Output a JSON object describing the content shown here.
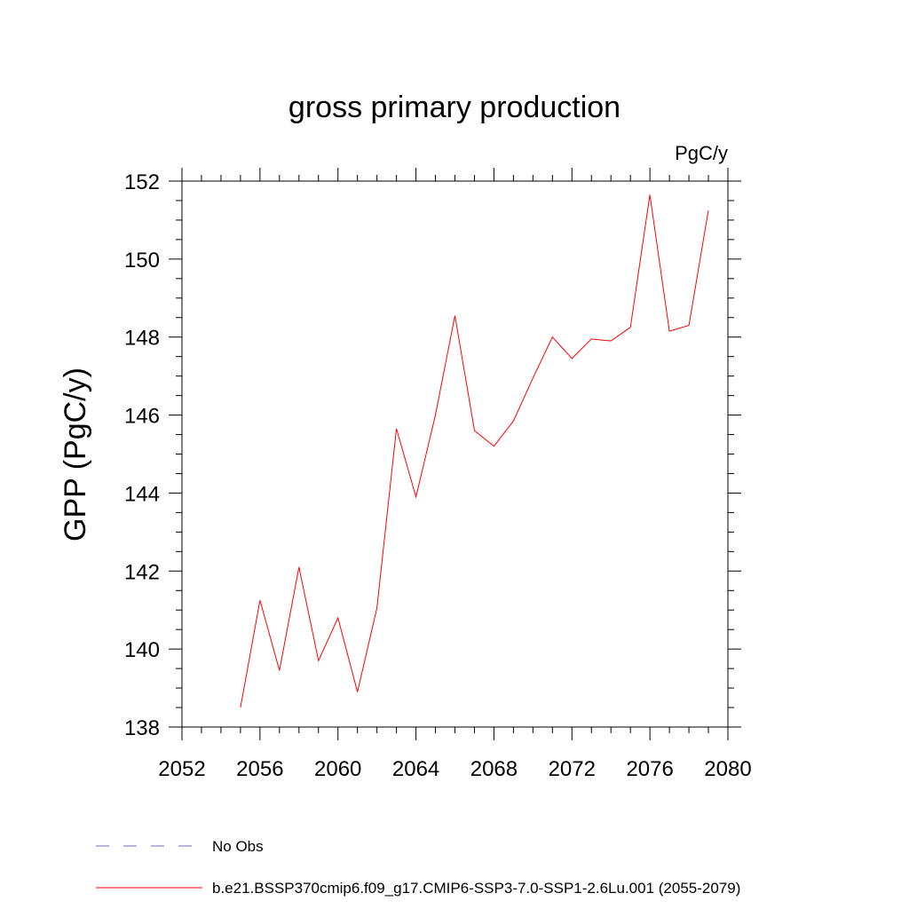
{
  "chart_data": {
    "type": "line",
    "title": "gross primary production",
    "units_label": "PgC/y",
    "xlabel": "",
    "ylabel": "GPP  (PgC/y)",
    "xlim": [
      2052,
      2080
    ],
    "ylim": [
      138,
      152
    ],
    "x_ticks": [
      2052,
      2056,
      2060,
      2064,
      2068,
      2072,
      2076,
      2080
    ],
    "y_ticks": [
      138,
      140,
      142,
      144,
      146,
      148,
      150,
      152
    ],
    "grid": false,
    "legend_position": "bottom",
    "x": [
      2055,
      2056,
      2057,
      2058,
      2059,
      2060,
      2061,
      2062,
      2063,
      2064,
      2065,
      2066,
      2067,
      2068,
      2069,
      2070,
      2071,
      2072,
      2073,
      2074,
      2075,
      2076,
      2077,
      2078,
      2079
    ],
    "series": [
      {
        "name": "b.e21.BSSP370cmip6.f09_g17.CMIP6-SSP3-7.0-SSP1-2.6Lu.001 (2055-2079)",
        "color": "#ff0000",
        "values": [
          138.5,
          141.25,
          139.45,
          142.1,
          139.7,
          140.8,
          138.9,
          141.05,
          145.65,
          143.9,
          146.0,
          148.55,
          145.6,
          145.2,
          145.85,
          146.95,
          148.0,
          147.45,
          147.95,
          147.9,
          148.25,
          151.65,
          148.15,
          148.3,
          151.25
        ]
      }
    ],
    "legend": [
      {
        "label": "No Obs",
        "color": "#7b68b0",
        "style": "dashed"
      },
      {
        "label": "b.e21.BSSP370cmip6.f09_g17.CMIP6-SSP3-7.0-SSP1-2.6Lu.001 (2055-2079)",
        "color": "#ff0000",
        "style": "solid"
      }
    ]
  }
}
